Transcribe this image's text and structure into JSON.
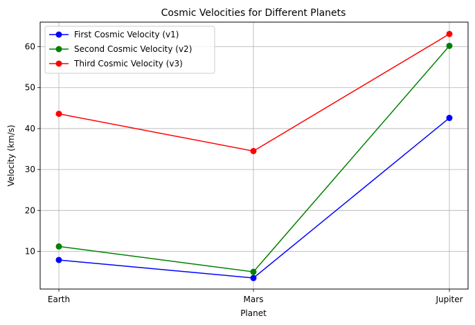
{
  "chart_data": {
    "type": "line",
    "title": "Cosmic Velocities for Different Planets",
    "xlabel": "Planet",
    "ylabel": "Velocity (km/s)",
    "categories": [
      "Earth",
      "Mars",
      "Jupiter"
    ],
    "ylim": [
      0.8,
      66
    ],
    "yticks": [
      10,
      20,
      30,
      40,
      50,
      60
    ],
    "grid": true,
    "legend_position": "top-left",
    "series": [
      {
        "name": "First Cosmic Velocity (v1)",
        "color": "#0000ff",
        "values": [
          7.9,
          3.5,
          42.6
        ]
      },
      {
        "name": "Second Cosmic Velocity (v2)",
        "color": "#008000",
        "values": [
          11.2,
          5.0,
          60.2
        ]
      },
      {
        "name": "Third Cosmic Velocity (v3)",
        "color": "#ff0000",
        "values": [
          43.6,
          34.5,
          63.1
        ]
      }
    ]
  }
}
